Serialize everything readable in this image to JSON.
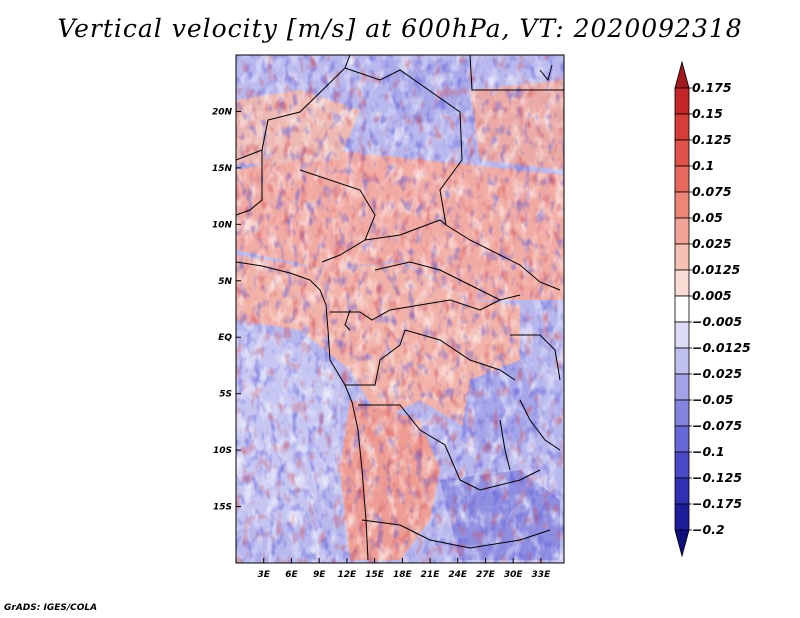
{
  "title": "Vertical velocity [m/s] at 600hPa, VT: 2020092318",
  "credit": "GrADS: IGES/COLA",
  "chart_data": {
    "type": "heatmap",
    "title": "Vertical velocity [m/s] at 600hPa, VT: 2020092318",
    "variable": "Vertical velocity",
    "units": "m/s",
    "level": "600hPa",
    "valid_time": "2020092318",
    "xlim": [
      0,
      35.5
    ],
    "ylim": [
      -20,
      25
    ],
    "x_ticks": [
      3,
      6,
      9,
      12,
      15,
      18,
      21,
      24,
      27,
      30,
      33
    ],
    "x_tick_labels": [
      "3E",
      "6E",
      "9E",
      "12E",
      "15E",
      "18E",
      "21E",
      "24E",
      "27E",
      "30E",
      "33E"
    ],
    "y_ticks": [
      20,
      15,
      10,
      5,
      0,
      -5,
      -10,
      -15
    ],
    "y_tick_labels": [
      "20N",
      "15N",
      "10N",
      "5N",
      "EQ",
      "5S",
      "10S",
      "15S"
    ],
    "colorbar_labels": [
      "0.175",
      "0.15",
      "0.125",
      "0.1",
      "0.075",
      "0.05",
      "0.025",
      "0.0125",
      "0.005",
      "−0.005",
      "−0.0125",
      "−0.025",
      "−0.05",
      "−0.075",
      "−0.1",
      "−0.125",
      "−0.175",
      "−0.2"
    ],
    "colorbar_colors": [
      "#a01a1f",
      "#c4262a",
      "#d63c38",
      "#e0524a",
      "#e86a5e",
      "#ee8677",
      "#f3a395",
      "#f7c0b5",
      "#fbdcd4",
      "#ffffff",
      "#dcdcf7",
      "#c0c0f0",
      "#a2a2e8",
      "#8484e0",
      "#6767d6",
      "#4a4ac8",
      "#3030b4",
      "#1d1d9c",
      "#0f0f80"
    ]
  }
}
